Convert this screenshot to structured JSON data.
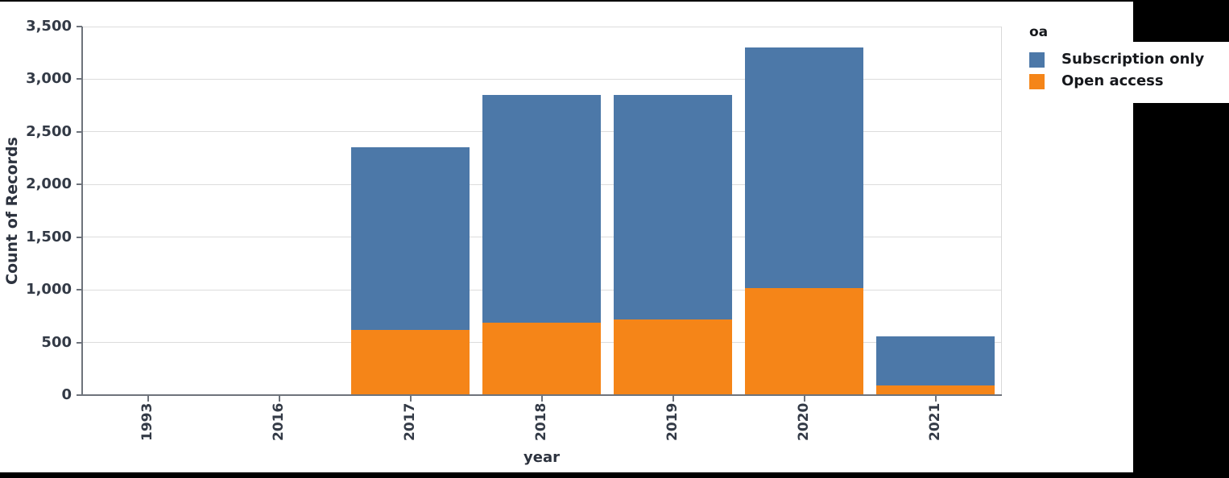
{
  "chart_data": {
    "type": "bar",
    "stacked": true,
    "title": "",
    "xlabel": "year",
    "ylabel": "Count of Records",
    "categories": [
      "1993",
      "2016",
      "2017",
      "2018",
      "2019",
      "2020",
      "2021"
    ],
    "series": [
      {
        "name": "Subscription only",
        "color": "#4c78a8",
        "values": [
          0,
          0,
          1730,
          2160,
          2130,
          2280,
          470
        ]
      },
      {
        "name": "Open access",
        "color": "#f58518",
        "values": [
          0,
          0,
          620,
          690,
          720,
          1020,
          90
        ]
      }
    ],
    "stack_bottom_to_top": [
      "Open access",
      "Subscription only"
    ],
    "totals": [
      0,
      0,
      2350,
      2850,
      2850,
      3300,
      560
    ],
    "ylim": [
      0,
      3500
    ],
    "yticks": [
      0,
      500,
      1000,
      1500,
      2000,
      2500,
      3000,
      3500
    ],
    "ytick_labels": [
      "0",
      "500",
      "1,000",
      "1,500",
      "2,000",
      "2,500",
      "3,000",
      "3,500"
    ],
    "grid": true,
    "legend": {
      "title": "oa",
      "position": "right",
      "entries": [
        {
          "label": "Subscription only",
          "color": "#4c78a8"
        },
        {
          "label": "Open access",
          "color": "#f58518"
        }
      ]
    }
  }
}
